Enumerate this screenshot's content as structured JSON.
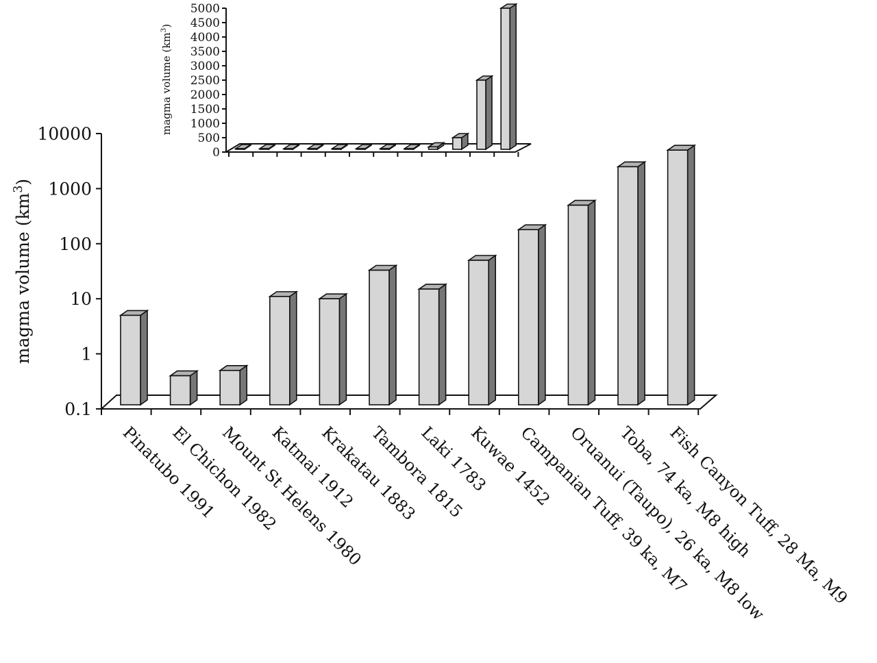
{
  "chart_data": [
    {
      "type": "bar",
      "title": "",
      "xlabel": "",
      "ylabel": "magma volume (km",
      "ylabel_sup": "3",
      "ylabel_close": ")",
      "yscale": "log",
      "ylim": [
        0.1,
        10000
      ],
      "yticks": [
        0.1,
        1,
        10,
        100,
        1000,
        10000
      ],
      "ytick_labels": [
        "0.1",
        "1",
        "10",
        "100",
        "1000",
        "10000"
      ],
      "categories": [
        "Pinatubo 1991",
        "El Chichon 1982",
        "Mount St Helens 1980",
        "Katmai 1912",
        "Krakatau 1883",
        "Tambora 1815",
        "Laki 1783",
        "Kuwae 1452",
        "Campanian Tuff, 39 ka, M7",
        "Oruanui (Taupo), 26 ka, M8 low",
        "Toba, 74 ka, M8 high",
        "Fish Canyon Tuff, 28 Ma, M9"
      ],
      "values": [
        5,
        0.4,
        0.5,
        11,
        10,
        33,
        15,
        50,
        180,
        500,
        2500,
        5000
      ],
      "grid": false,
      "legend": "none",
      "colors": {
        "front": "#d6d6d6",
        "top": "#b3b3b3",
        "side": "#777777",
        "ink": "#111111"
      }
    },
    {
      "type": "bar",
      "title": "",
      "xlabel": "",
      "ylabel": "magma volume (km",
      "ylabel_sup": "3",
      "ylabel_close": ")",
      "yscale": "linear",
      "ylim": [
        0,
        5000
      ],
      "yticks": [
        0,
        500,
        1000,
        1500,
        2000,
        2500,
        3000,
        3500,
        4000,
        4500,
        5000
      ],
      "ytick_labels": [
        "0",
        "500",
        "1000",
        "1500",
        "2000",
        "2500",
        "3000",
        "3500",
        "4000",
        "4500",
        "5000"
      ],
      "values": [
        5,
        0.4,
        0.5,
        11,
        10,
        33,
        15,
        50,
        180,
        500,
        2500,
        5000
      ],
      "grid": false,
      "legend": "none",
      "placement": "inset top-center"
    }
  ]
}
